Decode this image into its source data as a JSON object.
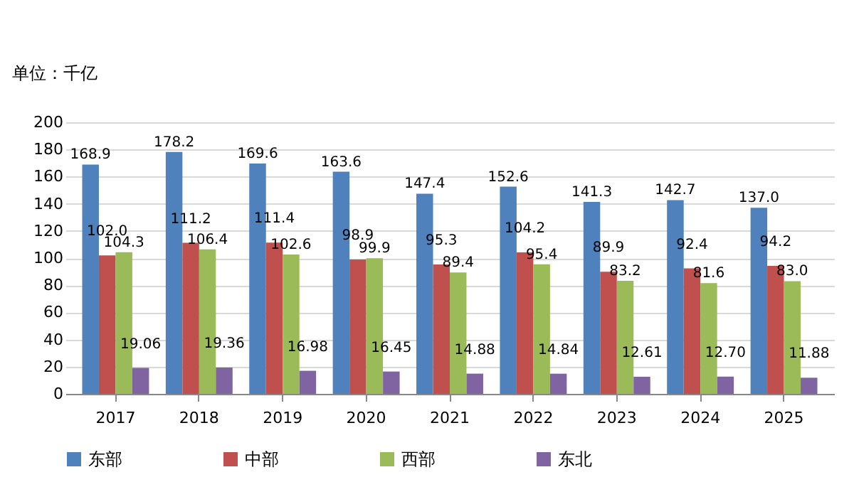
{
  "chart_data": {
    "type": "bar",
    "ylabel": "单位：千亿",
    "categories": [
      "2017",
      "2018",
      "2019",
      "2020",
      "2021",
      "2022",
      "2023",
      "2024",
      "2025"
    ],
    "series": [
      {
        "name": "东部",
        "color": "#4f81bd",
        "values": [
          168.9,
          178.2,
          169.6,
          163.6,
          147.4,
          152.6,
          141.3,
          142.7,
          137.0
        ]
      },
      {
        "name": "中部",
        "color": "#c0504d",
        "values": [
          102.0,
          111.2,
          111.4,
          98.9,
          95.3,
          104.2,
          89.9,
          92.4,
          94.2
        ]
      },
      {
        "name": "西部",
        "color": "#9bbb59",
        "values": [
          104.3,
          106.4,
          102.6,
          99.9,
          89.4,
          95.4,
          83.2,
          81.6,
          83.0
        ]
      },
      {
        "name": "东北",
        "color": "#8064a2",
        "values": [
          19.06,
          19.36,
          16.98,
          16.45,
          14.88,
          14.84,
          12.61,
          12.7,
          11.88
        ]
      }
    ],
    "value_labels": [
      [
        "168.9",
        "178.2",
        "169.6",
        "163.6",
        "147.4",
        "152.6",
        "141.3",
        "142.7",
        "137.0"
      ],
      [
        "102.0",
        "111.2",
        "111.4",
        "98.9",
        "95.3",
        "104.2",
        "89.9",
        "92.4",
        "94.2"
      ],
      [
        "104.3",
        "106.4",
        "102.6",
        "99.9",
        "89.4",
        "95.4",
        "83.2",
        "81.6",
        "83.0"
      ],
      [
        "19.06",
        "19.36",
        "16.98",
        "16.45",
        "14.88",
        "14.84",
        "12.61",
        "12.70",
        "11.88"
      ]
    ],
    "ylim": [
      0,
      200
    ],
    "yticks": [
      0,
      20,
      40,
      60,
      80,
      100,
      120,
      140,
      160,
      180,
      200
    ],
    "grid": "y",
    "legend": "bottom"
  }
}
